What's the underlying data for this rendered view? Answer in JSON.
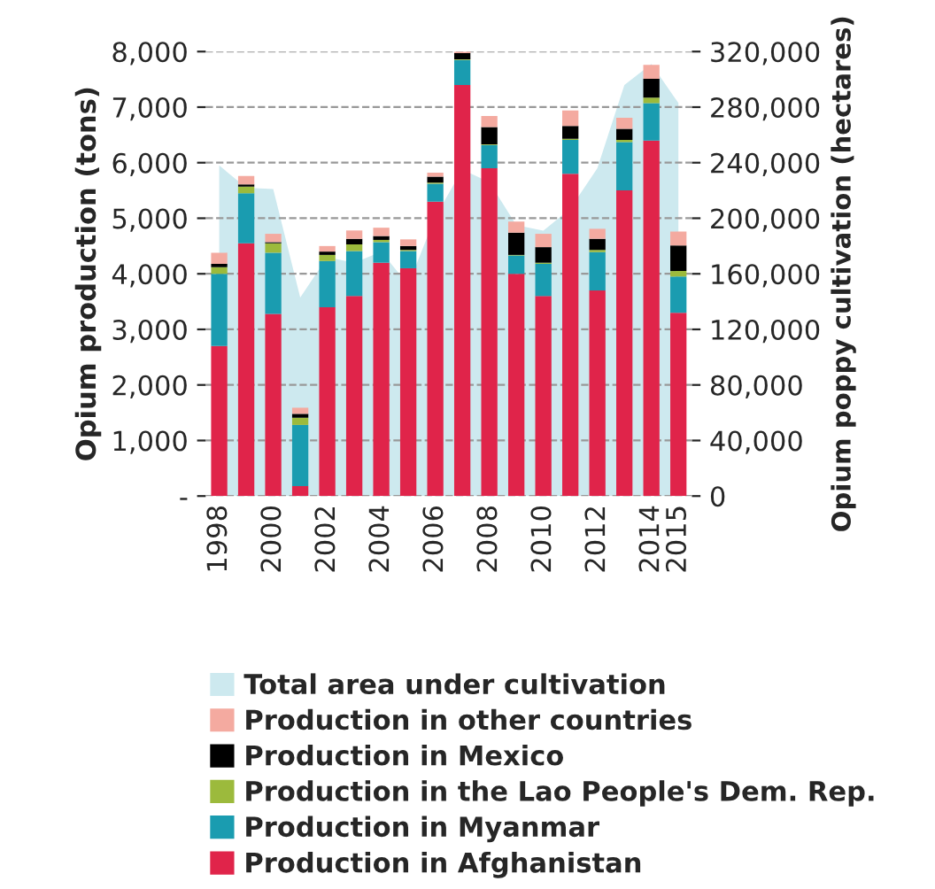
{
  "chart_data": {
    "type": "bar",
    "stacked": true,
    "ylabel": "Opium production (tons)",
    "y2label": "Opium poppy cultivation (hectares)",
    "categories": [
      "1998",
      null,
      "2000",
      null,
      "2002",
      null,
      "2004",
      null,
      "2006",
      null,
      "2008",
      null,
      "2010",
      null,
      "2012",
      null,
      "2014",
      "2015"
    ],
    "series": [
      {
        "name": "Total area under cultivation",
        "type": "area",
        "axis": "y2",
        "color": "#cde9ef",
        "values": [
          238000,
          222000,
          221000,
          143000,
          172000,
          168000,
          176000,
          152000,
          201000,
          235000,
          226000,
          195000,
          191000,
          207000,
          236000,
          296000,
          311000,
          283000
        ]
      },
      {
        "name": "Production in Afghanistan",
        "color": "#e0244a",
        "values": [
          2700,
          4550,
          3280,
          180,
          3400,
          3600,
          4200,
          4100,
          5300,
          7400,
          5900,
          4000,
          3600,
          5800,
          3700,
          5500,
          6400,
          3300
        ]
      },
      {
        "name": "Production in Myanmar",
        "color": "#1a9cb0",
        "values": [
          1300,
          900,
          1100,
          1100,
          830,
          810,
          370,
          310,
          320,
          450,
          420,
          330,
          580,
          610,
          690,
          870,
          670,
          650
        ]
      },
      {
        "name": "Production in the Lao People's Dem. Rep.",
        "color": "#9cba3c",
        "values": [
          120,
          120,
          170,
          130,
          110,
          120,
          40,
          20,
          20,
          10,
          10,
          10,
          20,
          20,
          40,
          40,
          100,
          100
        ]
      },
      {
        "name": "Production in Mexico",
        "color": "#000000",
        "values": [
          60,
          40,
          20,
          70,
          60,
          100,
          70,
          70,
          110,
          110,
          310,
          400,
          280,
          230,
          200,
          200,
          340,
          460
        ]
      },
      {
        "name": "Production in other countries",
        "color": "#f4aaa0",
        "values": [
          200,
          150,
          150,
          110,
          100,
          150,
          150,
          120,
          70,
          30,
          200,
          200,
          240,
          280,
          180,
          200,
          250,
          250
        ]
      }
    ],
    "ylim": [
      0,
      8000
    ],
    "yticks": [
      {
        "value": 0,
        "label": "-"
      },
      {
        "value": 1000,
        "label": "1,000"
      },
      {
        "value": 2000,
        "label": "2,000"
      },
      {
        "value": 3000,
        "label": "3,000"
      },
      {
        "value": 4000,
        "label": "4,000"
      },
      {
        "value": 5000,
        "label": "5,000"
      },
      {
        "value": 6000,
        "label": "6,000"
      },
      {
        "value": 7000,
        "label": "7,000"
      },
      {
        "value": 8000,
        "label": "8,000"
      }
    ],
    "y2lim": [
      0,
      320000
    ],
    "y2ticks": [
      0,
      {
        "value": 40000,
        "label": "40,000"
      },
      {
        "value": 80000,
        "label": "80,000"
      },
      {
        "value": 120000,
        "label": "120,000"
      },
      {
        "value": 160000,
        "label": "160,000"
      },
      {
        "value": 200000,
        "label": "200,000"
      },
      {
        "value": 240000,
        "label": "240,000"
      },
      {
        "value": 280000,
        "label": "280,000"
      },
      {
        "value": 320000,
        "label": "320,000"
      }
    ],
    "grid": "y",
    "legend": "bottom"
  }
}
